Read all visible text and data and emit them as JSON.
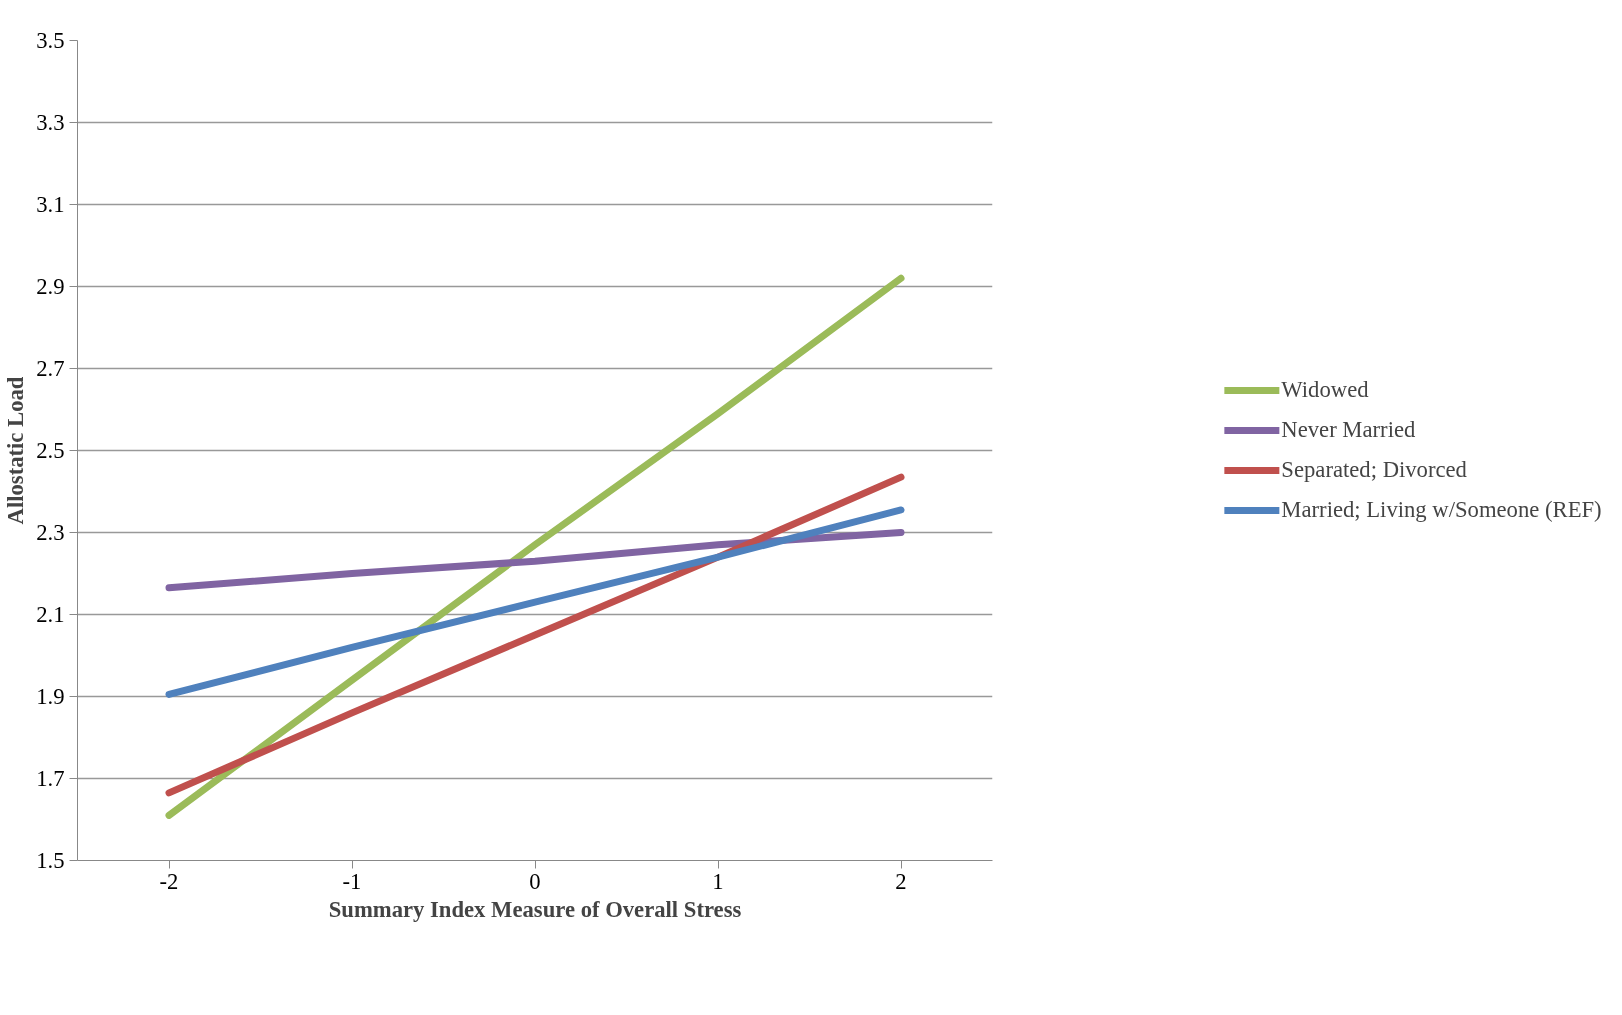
{
  "chart_data": {
    "type": "line",
    "xlabel": "Summary Index Measure of Overall Stress",
    "ylabel": "Allostatic Load",
    "categories": [
      "-2",
      "-1",
      "0",
      "1",
      "2"
    ],
    "series": [
      {
        "name": "Widowed",
        "color": "#9bbb59",
        "values": [
          1.61,
          1.94,
          2.27,
          2.59,
          2.92
        ]
      },
      {
        "name": "Never Married",
        "color": "#8064a2",
        "values": [
          2.165,
          2.2,
          2.23,
          2.27,
          2.3
        ]
      },
      {
        "name": "Separated; Divorced",
        "color": "#c0504d",
        "values": [
          1.665,
          1.86,
          2.05,
          2.24,
          2.435
        ]
      },
      {
        "name": "Married; Living w/Someone (REF)",
        "color": "#4f81bd",
        "values": [
          1.905,
          2.02,
          2.13,
          2.24,
          2.355
        ]
      }
    ],
    "ylim": [
      1.5,
      3.5
    ],
    "yticks": [
      1.5,
      1.7,
      1.9,
      2.1,
      2.3,
      2.5,
      2.7,
      2.9,
      3.1,
      3.3,
      3.5
    ],
    "grid": "y",
    "legend": "right",
    "marker": "none",
    "line_style": "solid"
  }
}
